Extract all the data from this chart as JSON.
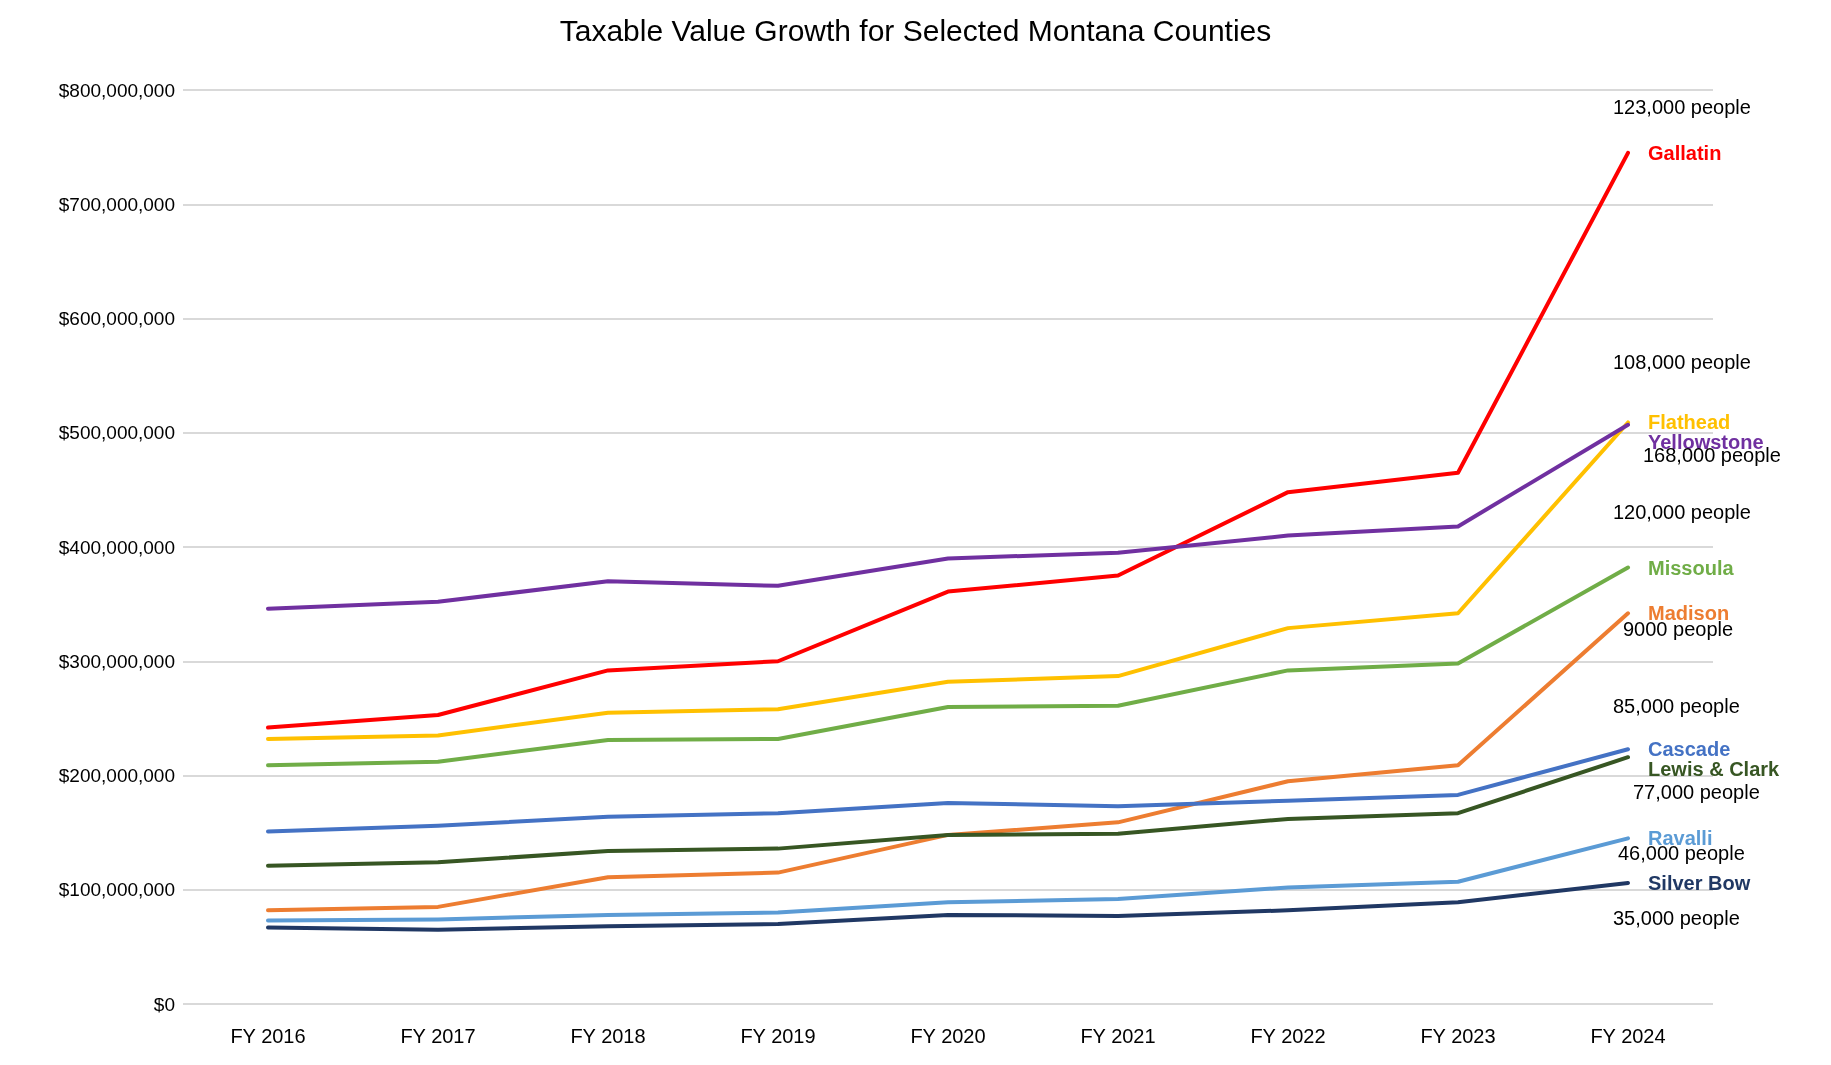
{
  "chart_data": {
    "type": "line",
    "title": "Taxable Value Growth for Selected Montana Counties",
    "categories": [
      "FY 2016",
      "FY 2017",
      "FY 2018",
      "FY 2019",
      "FY 2020",
      "FY 2021",
      "FY 2022",
      "FY 2023",
      "FY 2024"
    ],
    "series": [
      {
        "name": "Gallatin",
        "color": "#ff0000",
        "values": [
          242000000,
          253000000,
          292000000,
          300000000,
          361000000,
          375000000,
          448000000,
          465000000,
          745000000
        ]
      },
      {
        "name": "Flathead",
        "color": "#ffc000",
        "values": [
          232000000,
          235000000,
          255000000,
          258000000,
          282000000,
          287000000,
          329000000,
          342000000,
          509000000
        ]
      },
      {
        "name": "Yellowstone",
        "color": "#7030a0",
        "values": [
          346000000,
          352000000,
          370000000,
          366000000,
          390000000,
          395000000,
          410000000,
          418000000,
          507000000
        ]
      },
      {
        "name": "Missoula",
        "color": "#70ad47",
        "values": [
          209000000,
          212000000,
          231000000,
          232000000,
          260000000,
          261000000,
          292000000,
          298000000,
          382000000
        ]
      },
      {
        "name": "Madison",
        "color": "#ed7d31",
        "values": [
          82000000,
          85000000,
          111000000,
          115000000,
          148000000,
          159000000,
          195000000,
          209000000,
          342000000
        ]
      },
      {
        "name": "Cascade",
        "color": "#4472c4",
        "values": [
          151000000,
          156000000,
          164000000,
          167000000,
          176000000,
          173000000,
          178000000,
          183000000,
          223000000
        ]
      },
      {
        "name": "Lewis & Clark",
        "color": "#375623",
        "values": [
          121000000,
          124000000,
          134000000,
          136000000,
          148000000,
          149000000,
          162000000,
          167000000,
          216000000
        ]
      },
      {
        "name": "Ravalli",
        "color": "#5b9bd5",
        "values": [
          73000000,
          74000000,
          78000000,
          80000000,
          89000000,
          92000000,
          102000000,
          107000000,
          145000000
        ]
      },
      {
        "name": "Silver Bow",
        "color": "#203864",
        "values": [
          67000000,
          65000000,
          68000000,
          70000000,
          78000000,
          77000000,
          82000000,
          89000000,
          106000000
        ]
      }
    ],
    "ylim": [
      0,
      800000000
    ],
    "yticks": [
      {
        "value": 0,
        "label": "$0"
      },
      {
        "value": 100000000,
        "label": "$100,000,000"
      },
      {
        "value": 200000000,
        "label": "$200,000,000"
      },
      {
        "value": 300000000,
        "label": "$300,000,000"
      },
      {
        "value": 400000000,
        "label": "$400,000,000"
      },
      {
        "value": 500000000,
        "label": "$500,000,000"
      },
      {
        "value": 600000000,
        "label": "$600,000,000"
      },
      {
        "value": 700000000,
        "label": "$700,000,000"
      },
      {
        "value": 800000000,
        "label": "$800,000,000"
      }
    ],
    "grid": "y",
    "legend": false,
    "marker": "none",
    "line_style": "solid",
    "annotations": [
      "123,000 people",
      "108,000 people",
      "168,000 people",
      "120,000 people",
      "9000 people",
      "85,000 people",
      "77,000 people",
      "46,000 people",
      "35,000 people"
    ]
  }
}
